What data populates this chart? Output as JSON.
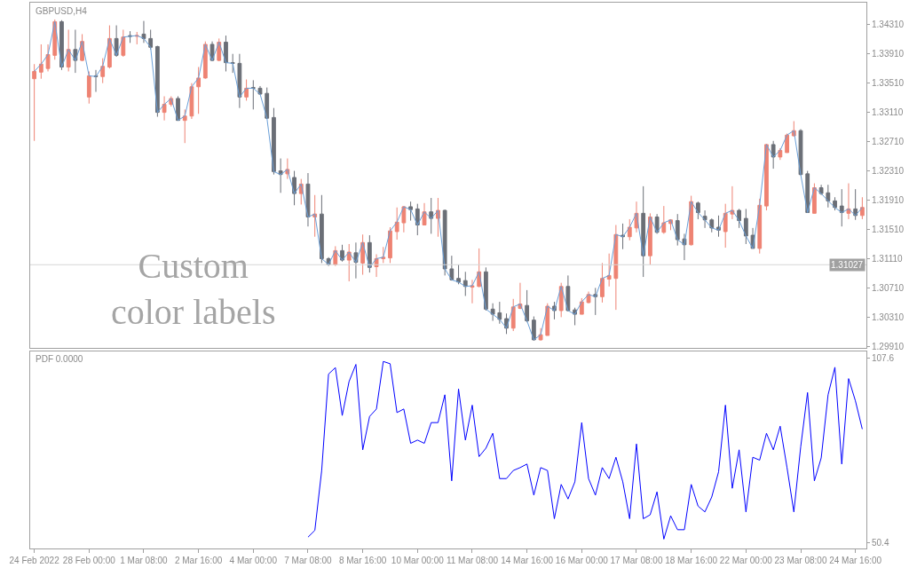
{
  "chart_data": [
    {
      "type": "candlestick",
      "title": "GBPUSD,H4",
      "categories": [
        null,
        null,
        null,
        null,
        null,
        null,
        null,
        null,
        null,
        null,
        null,
        null,
        null,
        null,
        null,
        null,
        null,
        null,
        null,
        null,
        null,
        null,
        null,
        null,
        null,
        null,
        null,
        null,
        null,
        null,
        null,
        null,
        null,
        null,
        null,
        null,
        null,
        null,
        null,
        null,
        null,
        null,
        null,
        null,
        null,
        null,
        null,
        null,
        null,
        null,
        null,
        null,
        null,
        null,
        null,
        null,
        null,
        null,
        null,
        null,
        null,
        null,
        null,
        null,
        null,
        null,
        null,
        null,
        null,
        null,
        null,
        null,
        null,
        null,
        null,
        null,
        null,
        null,
        null,
        null,
        null,
        null,
        null,
        null,
        null,
        null,
        null,
        null,
        null,
        null,
        null,
        null,
        null,
        null,
        null,
        null,
        null,
        null,
        null,
        null,
        null,
        null,
        null,
        null,
        null,
        null,
        null,
        null,
        null,
        null,
        null,
        null,
        null,
        null,
        null,
        null,
        null,
        null,
        null,
        null,
        null,
        null
      ],
      "ohlc": [
        [
          1.3357,
          1.3377,
          1.3272,
          1.3367
        ],
        [
          1.3366,
          1.3404,
          1.3357,
          1.3377
        ],
        [
          1.3371,
          1.3404,
          1.3367,
          1.339
        ],
        [
          1.3389,
          1.3438,
          1.3383,
          1.3435
        ],
        [
          1.3435,
          1.3437,
          1.3369,
          1.3373
        ],
        [
          1.3373,
          1.3424,
          1.3367,
          1.3397
        ],
        [
          1.3397,
          1.3424,
          1.3365,
          1.3382
        ],
        [
          1.3382,
          1.3418,
          1.3381,
          1.3408
        ],
        [
          1.3332,
          1.3367,
          1.3323,
          1.3361
        ],
        [
          1.3361,
          1.3369,
          1.3339,
          1.336
        ],
        [
          1.336,
          1.3385,
          1.3351,
          1.3374
        ],
        [
          1.3373,
          1.343,
          1.3371,
          1.3412
        ],
        [
          1.3412,
          1.343,
          1.3387,
          1.3389
        ],
        [
          1.3389,
          1.3424,
          1.3387,
          1.3414
        ],
        [
          1.3416,
          1.3422,
          1.3406,
          1.3415
        ],
        [
          1.3415,
          1.3421,
          1.3404,
          1.3416
        ],
        [
          1.3418,
          1.3436,
          1.3406,
          1.3412
        ],
        [
          1.3412,
          1.3424,
          1.3397,
          1.34
        ],
        [
          1.3401,
          1.3402,
          1.3305,
          1.3311
        ],
        [
          1.3311,
          1.3333,
          1.33,
          1.3322
        ],
        [
          1.3322,
          1.3333,
          1.3319,
          1.333
        ],
        [
          1.333,
          1.3333,
          1.33,
          1.33
        ],
        [
          1.33,
          1.3315,
          1.3269,
          1.3306
        ],
        [
          1.3306,
          1.3351,
          1.3302,
          1.3346
        ],
        [
          1.3346,
          1.3373,
          1.3309,
          1.3358
        ],
        [
          1.3358,
          1.3408,
          1.3357,
          1.3404
        ],
        [
          1.3404,
          1.3408,
          1.3381,
          1.3382
        ],
        [
          1.3382,
          1.3412,
          1.3381,
          1.3407
        ],
        [
          1.3407,
          1.3416,
          1.3367,
          1.3379
        ],
        [
          1.3379,
          1.3391,
          1.3365,
          1.3378
        ],
        [
          1.3378,
          1.3391,
          1.3317,
          1.3332
        ],
        [
          1.3332,
          1.3356,
          1.3327,
          1.3344
        ],
        [
          1.3345,
          1.3355,
          1.3315,
          1.3344
        ],
        [
          1.3344,
          1.3347,
          1.3335,
          1.3336
        ],
        [
          1.3337,
          1.3345,
          1.3302,
          1.3303
        ],
        [
          1.3304,
          1.3317,
          1.3226,
          1.323
        ],
        [
          1.3231,
          1.3248,
          1.3201,
          1.3226
        ],
        [
          1.3227,
          1.3248,
          1.322,
          1.3233
        ],
        [
          1.3222,
          1.3231,
          1.3184,
          1.32
        ],
        [
          1.32,
          1.322,
          1.3185,
          1.3213
        ],
        [
          1.3213,
          1.3228,
          1.3155,
          1.3168
        ],
        [
          1.3168,
          1.3198,
          1.3141,
          1.3172
        ],
        [
          1.3172,
          1.3198,
          1.3105,
          1.3111
        ],
        [
          1.3111,
          1.3113,
          1.3101,
          1.3103
        ],
        [
          1.3103,
          1.3128,
          1.3101,
          1.3122
        ],
        [
          1.3122,
          1.313,
          1.3107,
          1.3109
        ],
        [
          1.3109,
          1.3131,
          1.308,
          1.312
        ],
        [
          1.3119,
          1.3133,
          1.3084,
          1.3106
        ],
        [
          1.3105,
          1.3144,
          1.3089,
          1.3133
        ],
        [
          1.3133,
          1.3143,
          1.3092,
          1.3099
        ],
        [
          1.31,
          1.3117,
          1.3086,
          1.3111
        ],
        [
          1.3111,
          1.3127,
          1.3105,
          1.3113
        ],
        [
          1.3112,
          1.3154,
          1.3105,
          1.3149
        ],
        [
          1.3148,
          1.3181,
          1.3137,
          1.3161
        ],
        [
          1.316,
          1.3183,
          1.3147,
          1.3182
        ],
        [
          1.3182,
          1.3189,
          1.3163,
          1.3178
        ],
        [
          1.3179,
          1.3186,
          1.3143,
          1.3157
        ],
        [
          1.3157,
          1.3187,
          1.3157,
          1.3175
        ],
        [
          1.3175,
          1.3194,
          1.3145,
          1.3166
        ],
        [
          1.3166,
          1.3194,
          1.3141,
          1.3177
        ],
        [
          1.3177,
          1.3178,
          1.3088,
          1.3097
        ],
        [
          1.3097,
          1.3115,
          1.3081,
          1.3082
        ],
        [
          1.3084,
          1.3103,
          1.3076,
          1.3079
        ],
        [
          1.3081,
          1.3093,
          1.306,
          1.3073
        ],
        [
          1.3072,
          1.3082,
          1.305,
          1.3074
        ],
        [
          1.3073,
          1.3125,
          1.3072,
          1.3093
        ],
        [
          1.3093,
          1.3099,
          1.304,
          1.3042
        ],
        [
          1.3042,
          1.305,
          1.3026,
          1.3035
        ],
        [
          1.3037,
          1.3052,
          1.3022,
          1.3028
        ],
        [
          1.3029,
          1.3036,
          1.3008,
          1.3016
        ],
        [
          1.3016,
          1.3056,
          1.3012,
          1.3045
        ],
        [
          1.3043,
          1.3078,
          1.3042,
          1.3049
        ],
        [
          1.3047,
          1.3068,
          1.3024,
          1.3026
        ],
        [
          1.3027,
          1.3032,
          1.2999,
          1.3
        ],
        [
          1.3,
          1.3016,
          1.2999,
          1.3007
        ],
        [
          1.3006,
          1.305,
          1.3006,
          1.3046
        ],
        [
          1.3046,
          1.3052,
          1.3028,
          1.304
        ],
        [
          1.304,
          1.3078,
          1.3031,
          1.3073
        ],
        [
          1.3073,
          1.3088,
          1.3039,
          1.304
        ],
        [
          1.3041,
          1.3044,
          1.302,
          1.3035
        ],
        [
          1.3035,
          1.3057,
          1.3035,
          1.3052
        ],
        [
          1.3051,
          1.3066,
          1.305,
          1.3062
        ],
        [
          1.3062,
          1.3071,
          1.3034,
          1.3059
        ],
        [
          1.3059,
          1.3105,
          1.3051,
          1.3084
        ],
        [
          1.3083,
          1.3118,
          1.3073,
          1.3088
        ],
        [
          1.3084,
          1.3157,
          1.3041,
          1.3144
        ],
        [
          1.3143,
          1.3159,
          1.3124,
          1.3141
        ],
        [
          1.3141,
          1.3165,
          1.3136,
          1.3154
        ],
        [
          1.3153,
          1.3189,
          1.3147,
          1.3173
        ],
        [
          1.3173,
          1.321,
          1.3086,
          1.3115
        ],
        [
          1.3115,
          1.3173,
          1.3103,
          1.3168
        ],
        [
          1.3168,
          1.3172,
          1.3145,
          1.3147
        ],
        [
          1.3147,
          1.3183,
          1.3145,
          1.316
        ],
        [
          1.3159,
          1.3165,
          1.315,
          1.3164
        ],
        [
          1.3163,
          1.3172,
          1.3129,
          1.3137
        ],
        [
          1.3138,
          1.3145,
          1.3109,
          1.313
        ],
        [
          1.313,
          1.3197,
          1.3129,
          1.3189
        ],
        [
          1.3187,
          1.3189,
          1.3165,
          1.3174
        ],
        [
          1.3169,
          1.3177,
          1.3153,
          1.3164
        ],
        [
          1.3164,
          1.3166,
          1.3147,
          1.3153
        ],
        [
          1.3154,
          1.317,
          1.3141,
          1.315
        ],
        [
          1.3148,
          1.3186,
          1.3126,
          1.3173
        ],
        [
          1.3172,
          1.321,
          1.3165,
          1.3177
        ],
        [
          1.3177,
          1.3179,
          1.3153,
          1.3163
        ],
        [
          1.3166,
          1.3179,
          1.3131,
          1.3142
        ],
        [
          1.3143,
          1.3153,
          1.3125,
          1.3125
        ],
        [
          1.3125,
          1.3193,
          1.3118,
          1.3184
        ],
        [
          1.3183,
          1.3268,
          1.3177,
          1.3267
        ],
        [
          1.3267,
          1.3272,
          1.3234,
          1.325
        ],
        [
          1.325,
          1.3262,
          1.3246,
          1.3259
        ],
        [
          1.3256,
          1.3282,
          1.3256,
          1.328
        ],
        [
          1.3279,
          1.3299,
          1.3278,
          1.3286
        ],
        [
          1.3286,
          1.3288,
          1.3225,
          1.3226
        ],
        [
          1.3227,
          1.3231,
          1.3174,
          1.3174
        ],
        [
          1.3173,
          1.3214,
          1.3173,
          1.3208
        ],
        [
          1.3208,
          1.3212,
          1.3198,
          1.32
        ],
        [
          1.3201,
          1.3212,
          1.3181,
          1.319
        ],
        [
          1.319,
          1.3195,
          1.3177,
          1.3181
        ],
        [
          1.3183,
          1.3206,
          1.3155,
          1.3174
        ],
        [
          1.3173,
          1.3214,
          1.3165,
          1.3179
        ],
        [
          1.3179,
          1.3206,
          1.3164,
          1.317
        ],
        [
          1.317,
          1.3195,
          1.3165,
          1.3181
        ]
      ],
      "colors": [
        "#ee8373",
        "#ee8373",
        "#ee8373",
        "#ee8373",
        "#6b6f77",
        "#ee8373",
        "#6b6f77",
        "#ee8373",
        "#ee8373",
        "#6b6f77",
        "#ee8373",
        "#ee8373",
        "#6b6f77",
        "#ee8373",
        "#6b6f77",
        "#ee8373",
        "#6b6f77",
        "#6b6f77",
        "#6b6f77",
        "#ee8373",
        "#ee8373",
        "#6b6f77",
        "#ee8373",
        "#ee8373",
        "#ee8373",
        "#ee8373",
        "#6b6f77",
        "#ee8373",
        "#6b6f77",
        "#6b6f77",
        "#6b6f77",
        "#ee8373",
        "#6b6f77",
        "#6b6f77",
        "#6b6f77",
        "#6b6f77",
        "#6b6f77",
        "#ee8373",
        "#6b6f77",
        "#ee8373",
        "#6b6f77",
        "#ee8373",
        "#6b6f77",
        "#6b6f77",
        "#ee8373",
        "#6b6f77",
        "#ee8373",
        "#6b6f77",
        "#ee8373",
        "#6b6f77",
        "#ee8373",
        "#ee8373",
        "#ee8373",
        "#ee8373",
        "#ee8373",
        "#6b6f77",
        "#6b6f77",
        "#ee8373",
        "#6b6f77",
        "#ee8373",
        "#6b6f77",
        "#6b6f77",
        "#6b6f77",
        "#6b6f77",
        "#ee8373",
        "#ee8373",
        "#6b6f77",
        "#6b6f77",
        "#6b6f77",
        "#6b6f77",
        "#ee8373",
        "#ee8373",
        "#6b6f77",
        "#6b6f77",
        "#ee8373",
        "#ee8373",
        "#6b6f77",
        "#ee8373",
        "#6b6f77",
        "#6b6f77",
        "#ee8373",
        "#ee8373",
        "#6b6f77",
        "#ee8373",
        "#ee8373",
        "#ee8373",
        "#6b6f77",
        "#ee8373",
        "#ee8373",
        "#6b6f77",
        "#ee8373",
        "#6b6f77",
        "#ee8373",
        "#ee8373",
        "#6b6f77",
        "#6b6f77",
        "#ee8373",
        "#6b6f77",
        "#6b6f77",
        "#6b6f77",
        "#6b6f77",
        "#ee8373",
        "#ee8373",
        "#6b6f77",
        "#6b6f77",
        "#6b6f77",
        "#ee8373",
        "#ee8373",
        "#6b6f77",
        "#ee8373",
        "#ee8373",
        "#ee8373",
        "#6b6f77",
        "#6b6f77",
        "#ee8373",
        "#6b6f77",
        "#6b6f77",
        "#6b6f77",
        "#6b6f77",
        "#ee8373",
        "#6b6f77",
        "#ee8373"
      ],
      "series": [
        {
          "type": "line",
          "color": "#6a9fd8",
          "values": [
            1.3367,
            1.3377,
            1.339,
            1.3435,
            1.3373,
            1.3397,
            1.3382,
            1.3408,
            1.3361,
            1.336,
            1.3374,
            1.3412,
            1.3389,
            1.3414,
            1.3415,
            1.3416,
            1.3412,
            1.34,
            1.3311,
            1.3322,
            1.333,
            1.33,
            1.3306,
            1.3346,
            1.3358,
            1.3404,
            1.3382,
            1.3407,
            1.3379,
            1.3378,
            1.3332,
            1.3344,
            1.3344,
            1.3336,
            1.3303,
            1.323,
            1.3226,
            1.3233,
            1.32,
            1.3213,
            1.3168,
            1.3172,
            1.3111,
            1.3103,
            1.3122,
            1.3109,
            1.312,
            1.3106,
            1.3133,
            1.3099,
            1.3111,
            1.3113,
            1.3149,
            1.3161,
            1.3182,
            1.3178,
            1.3157,
            1.3175,
            1.3166,
            1.3177,
            1.3097,
            1.3082,
            1.3079,
            1.3073,
            1.3074,
            1.3093,
            1.3042,
            1.3035,
            1.3028,
            1.3016,
            1.3045,
            1.3049,
            1.3026,
            1.3,
            1.3007,
            1.3046,
            1.304,
            1.3073,
            1.304,
            1.3035,
            1.3052,
            1.3062,
            1.3059,
            1.3084,
            1.3088,
            1.3144,
            1.3141,
            1.3154,
            1.3173,
            1.3115,
            1.3168,
            1.3147,
            1.316,
            1.3164,
            1.3137,
            1.313,
            1.3189,
            1.3174,
            1.3164,
            1.3153,
            1.315,
            1.3173,
            1.3177,
            1.3163,
            1.3142,
            1.3125,
            1.3184,
            1.3267,
            1.325,
            1.3259,
            1.328,
            1.3286,
            1.3226,
            1.3174,
            1.3208,
            1.32,
            1.319,
            1.3181,
            1.3174,
            1.3179,
            1.317,
            1.3181
          ]
        }
      ],
      "ylim": [
        1.2989,
        1.3461
      ],
      "yticks": [
        {
          "value": 1.3431,
          "label": "1.34310"
        },
        {
          "value": 1.3391,
          "label": "1.33910"
        },
        {
          "value": 1.3351,
          "label": "1.33510"
        },
        {
          "value": 1.3311,
          "label": "1.33110"
        },
        {
          "value": 1.3271,
          "label": "1.32710"
        },
        {
          "value": 1.3231,
          "label": "1.32310"
        },
        {
          "value": 1.3191,
          "label": "1.31910"
        },
        {
          "value": 1.3151,
          "label": "1.31510"
        },
        {
          "value": 1.3111,
          "label": "1.31110"
        },
        {
          "value": 1.3071,
          "label": "1.30710"
        },
        {
          "value": 1.3031,
          "label": "1.30310"
        },
        {
          "value": 1.2991,
          "label": "1.29910"
        }
      ],
      "ref_lines": [
        {
          "axis": "y",
          "value": 1.31027,
          "label": "1.31027",
          "color": "#d6d6d6"
        }
      ],
      "annotations": [
        "Custom\ncolor labels"
      ],
      "tick_labels": "y"
    },
    {
      "type": "line",
      "title": "PDF 0.0000",
      "categories": [
        "24 Feb 2022",
        null,
        null,
        null,
        null,
        null,
        null,
        null,
        "28 Feb 00:00",
        null,
        null,
        null,
        null,
        null,
        null,
        null,
        "1 Mar 08:00",
        null,
        null,
        null,
        null,
        null,
        null,
        null,
        "2 Mar 16:00",
        null,
        null,
        null,
        null,
        null,
        null,
        null,
        "4 Mar 00:00",
        null,
        null,
        null,
        null,
        null,
        null,
        null,
        "7 Mar 08:00",
        null,
        null,
        null,
        null,
        null,
        null,
        null,
        "8 Mar 16:00",
        null,
        null,
        null,
        null,
        null,
        null,
        null,
        "10 Mar 00:00",
        null,
        null,
        null,
        null,
        null,
        null,
        null,
        "11 Mar 08:00",
        null,
        null,
        null,
        null,
        null,
        null,
        null,
        "14 Mar 16:00",
        null,
        null,
        null,
        null,
        null,
        null,
        null,
        "16 Mar 00:00",
        null,
        null,
        null,
        null,
        null,
        null,
        null,
        "17 Mar 08:00",
        null,
        null,
        null,
        null,
        null,
        null,
        null,
        "18 Mar 16:00",
        null,
        null,
        null,
        null,
        null,
        null,
        null,
        "22 Mar 00:00",
        null,
        null,
        null,
        null,
        null,
        null,
        null,
        "23 Mar 08:00",
        null,
        null,
        null,
        null,
        null,
        null,
        null,
        "24 Mar 16:00",
        null
      ],
      "series": [
        {
          "color": "#0000ff",
          "values": [
            null,
            null,
            null,
            null,
            null,
            null,
            null,
            null,
            null,
            null,
            null,
            null,
            null,
            null,
            null,
            null,
            null,
            null,
            null,
            null,
            null,
            null,
            null,
            null,
            null,
            null,
            null,
            null,
            null,
            null,
            null,
            null,
            null,
            null,
            null,
            null,
            null,
            null,
            null,
            null,
            52.2,
            54.3,
            72.8,
            102.6,
            104.6,
            89.8,
            100.3,
            105.6,
            79.2,
            89.5,
            91.8,
            106.5,
            105.8,
            90.7,
            91.8,
            81.2,
            82.2,
            81.2,
            87.6,
            87.6,
            96.2,
            69.6,
            98.0,
            82.2,
            93.0,
            77.1,
            79.7,
            84.3,
            70.3,
            70.3,
            72.8,
            73.7,
            74.8,
            65.2,
            73.7,
            72.8,
            57.9,
            68.5,
            64.0,
            69.3,
            87.6,
            70.3,
            65.2,
            73.7,
            70.3,
            76.9,
            69.3,
            57.9,
            81.0,
            57.9,
            59.1,
            66.2,
            51.6,
            58.8,
            54.5,
            54.5,
            68.5,
            61.8,
            60.0,
            64.6,
            72.4,
            93.0,
            67.3,
            79.2,
            60.0,
            76.9,
            76.0,
            84.3,
            79.2,
            86.5,
            73.7,
            60.0,
            80.1,
            96.9,
            69.6,
            76.7,
            96.2,
            104.7,
            74.8,
            101.2,
            94.3,
            85.6
          ]
        }
      ],
      "ylim": [
        48.7,
        109.6
      ],
      "yticks": [
        107.6,
        50.4
      ]
    }
  ]
}
